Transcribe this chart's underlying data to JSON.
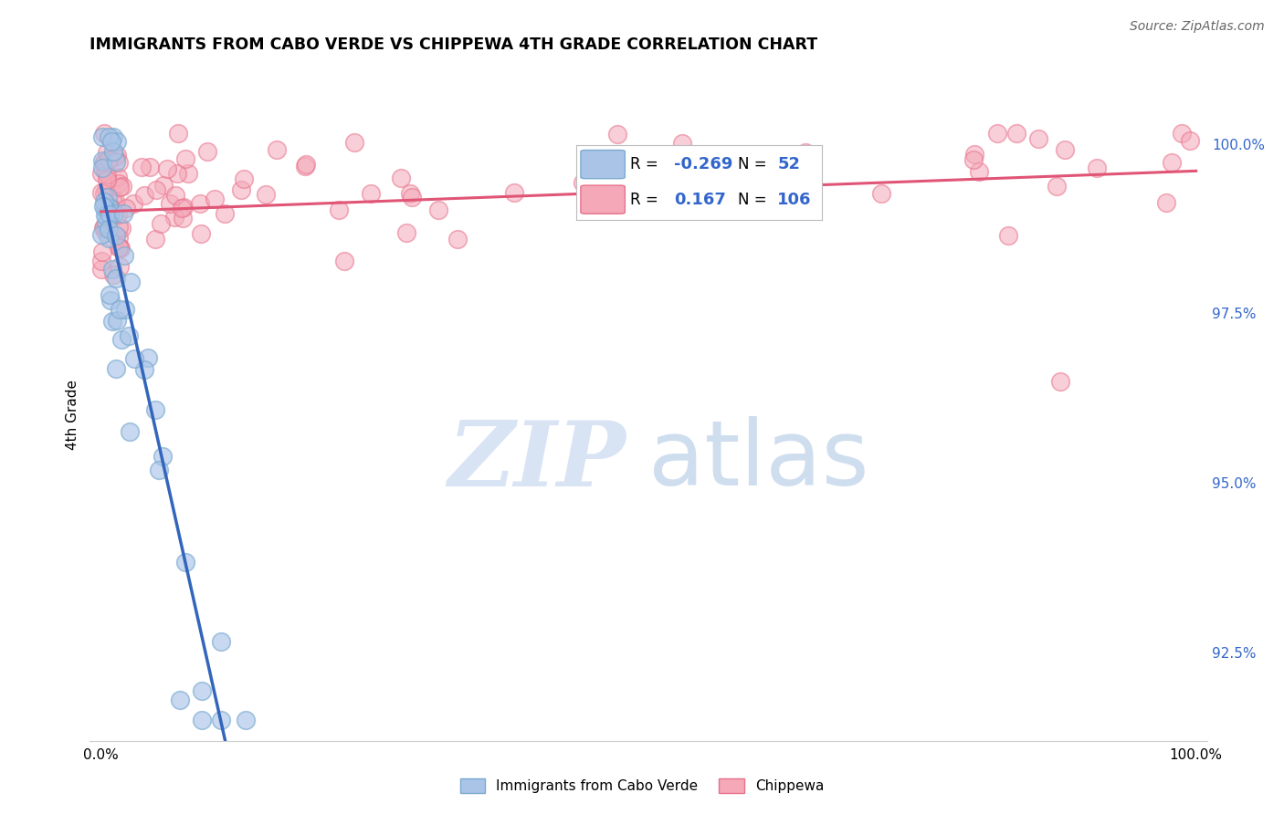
{
  "title": "IMMIGRANTS FROM CABO VERDE VS CHIPPEWA 4TH GRADE CORRELATION CHART",
  "source": "Source: ZipAtlas.com",
  "ylabel": "4th Grade",
  "right_yticks": [
    92.5,
    95.0,
    97.5,
    100.0
  ],
  "right_ytick_labels": [
    "92.5%",
    "95.0%",
    "97.5%",
    "100.0%"
  ],
  "legend_blue_R": "-0.269",
  "legend_blue_N": "52",
  "legend_pink_R": "0.167",
  "legend_pink_N": "106",
  "legend_blue_label": "Immigrants from Cabo Verde",
  "legend_pink_label": "Chippewa",
  "blue_color": "#aac4e8",
  "blue_edge_color": "#7aaad0",
  "pink_color": "#f4a8b8",
  "pink_edge_color": "#e8708a",
  "blue_line_color": "#3366bb",
  "pink_line_color": "#e05575",
  "ylim_min": 91.2,
  "ylim_max": 100.8,
  "xlim_min": -1.0,
  "xlim_max": 101.0,
  "grid_color": "#cccccc",
  "watermark_zip_color": "#c8d8f0",
  "watermark_atlas_color": "#b0c8e4"
}
